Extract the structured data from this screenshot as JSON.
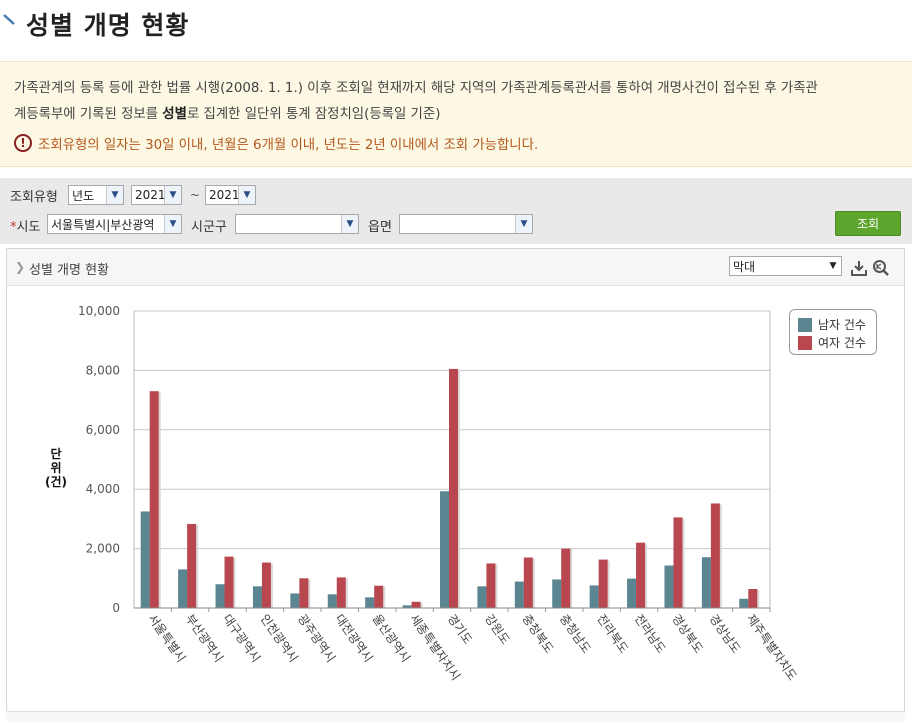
{
  "page": {
    "title": "성별 개명 현황",
    "notice_line1": "가족관계의 등록 등에 관한 법률 시행(2008. 1. 1.) 이후 조회일 현재까지 해당 지역의 가족관계등록관서를 통하여 개명사건이 접수된 후 가족관",
    "notice_line2_a": "계등록부에 기록된 정보를 ",
    "notice_line2_bold": "성별",
    "notice_line2_b": "로 집계한 일단위 통계 잠정치임(등록일 기준)",
    "notice_warning": "조회유형의 일자는 30일 이내, 년월은 6개월 이내, 년도는 2년 이내에서 조회 가능합니다."
  },
  "filters": {
    "type_label": "조회유형",
    "type_value": "년도",
    "from_year": "2021",
    "tilde": "~",
    "to_year": "2021",
    "req_mark": "*",
    "sido_label": "시도",
    "sido_value": "서울특별시|부산광역",
    "sigungu_label": "시군구",
    "sigungu_value": "",
    "eupmyeon_label": "읍면",
    "eupmyeon_value": "",
    "search_button": "조회"
  },
  "panel": {
    "title": "성별 개명 현황",
    "chart_type_select": "막대",
    "download_icon": "download-icon",
    "zoom_icon": "zoom-icon"
  },
  "colors": {
    "male": "#5b8591",
    "female": "#b84750",
    "accent_green": "#5ea52e"
  },
  "chart_data": {
    "type": "bar",
    "ylabel": "단\n위\n(건)",
    "ylim": [
      0,
      10000
    ],
    "yticks": [
      "0",
      "2,000",
      "4,000",
      "6,000",
      "8,000",
      "10,000"
    ],
    "grid": true,
    "legend_placement": "top-right",
    "categories": [
      "서울특별시",
      "부산광역시",
      "대구광역시",
      "인천광역시",
      "광주광역시",
      "대전광역시",
      "울산광역시",
      "세종특별자치시",
      "경기도",
      "강원도",
      "충청북도",
      "충청남도",
      "전라북도",
      "전라남도",
      "경상북도",
      "경상남도",
      "제주특별자치도"
    ],
    "series": [
      {
        "name": "남자 건수",
        "values": [
          3250,
          1300,
          800,
          730,
          490,
          460,
          360,
          90,
          3930,
          730,
          890,
          960,
          760,
          990,
          1430,
          1710,
          310
        ]
      },
      {
        "name": "여자 건수",
        "values": [
          7300,
          2830,
          1730,
          1530,
          1000,
          1030,
          750,
          210,
          8050,
          1500,
          1700,
          2000,
          1630,
          2200,
          3050,
          3520,
          640
        ]
      }
    ]
  }
}
